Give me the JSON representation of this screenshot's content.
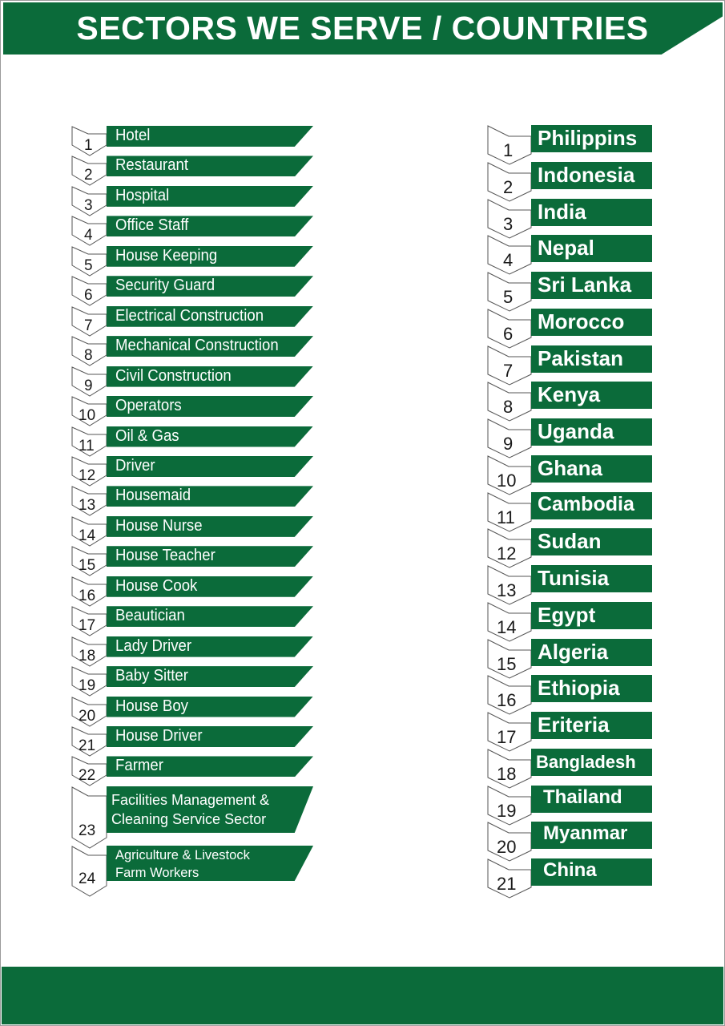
{
  "header": {
    "title": "SECTORS WE SERVE / COUNTRIES"
  },
  "colors": {
    "brand_green": "#0b6b3a",
    "text": "#1a1a1a"
  },
  "sectors": [
    {
      "num": "1",
      "label": "Hotel"
    },
    {
      "num": "2",
      "label": "Restaurant"
    },
    {
      "num": "3",
      "label": "Hospital"
    },
    {
      "num": "4",
      "label": "Office Staff"
    },
    {
      "num": "5",
      "label": "House Keeping"
    },
    {
      "num": "6",
      "label": "Security Guard"
    },
    {
      "num": "7",
      "label": "Electrical Construction"
    },
    {
      "num": "8",
      "label": "Mechanical Construction"
    },
    {
      "num": "9",
      "label": "Civil Construction"
    },
    {
      "num": "10",
      "label": "Operators"
    },
    {
      "num": "11",
      "label": "Oil & Gas"
    },
    {
      "num": "12",
      "label": "Driver"
    },
    {
      "num": "13",
      "label": "Housemaid"
    },
    {
      "num": "14",
      "label": "House Nurse"
    },
    {
      "num": "15",
      "label": "House Teacher"
    },
    {
      "num": "16",
      "label": "House Cook"
    },
    {
      "num": "17",
      "label": "Beautician"
    },
    {
      "num": "18",
      "label": "Lady Driver"
    },
    {
      "num": "19",
      "label": "Baby Sitter"
    },
    {
      "num": "20",
      "label": "House Boy"
    },
    {
      "num": "21",
      "label": "House Driver"
    },
    {
      "num": "22",
      "label": "Farmer"
    },
    {
      "num": "23",
      "label_line1": "Facilities Management &",
      "label_line2": "Cleaning Service Sector"
    },
    {
      "num": "24",
      "label_line1": "Agriculture & Livestock",
      "label_line2": "Farm Workers"
    }
  ],
  "countries": [
    {
      "num": "1",
      "label": "Philippins"
    },
    {
      "num": "2",
      "label": "Indonesia"
    },
    {
      "num": "3",
      "label": "India"
    },
    {
      "num": "4",
      "label": "Nepal"
    },
    {
      "num": "5",
      "label": "Sri Lanka"
    },
    {
      "num": "6",
      "label": "Morocco"
    },
    {
      "num": "7",
      "label": "Pakistan"
    },
    {
      "num": "8",
      "label": "Kenya"
    },
    {
      "num": "9",
      "label": "Uganda"
    },
    {
      "num": "10",
      "label": "Ghana"
    },
    {
      "num": "11",
      "label": "Cambodia"
    },
    {
      "num": "12",
      "label": "Sudan"
    },
    {
      "num": "13",
      "label": "Tunisia"
    },
    {
      "num": "14",
      "label": "Egypt"
    },
    {
      "num": "15",
      "label": "Algeria"
    },
    {
      "num": "16",
      "label": "Ethiopia"
    },
    {
      "num": "17",
      "label": "Eriteria"
    },
    {
      "num": "18",
      "label": "Bangladesh"
    },
    {
      "num": "19",
      "label": "Thailand"
    },
    {
      "num": "20",
      "label": "Myanmar"
    },
    {
      "num": "21",
      "label": "China"
    }
  ]
}
